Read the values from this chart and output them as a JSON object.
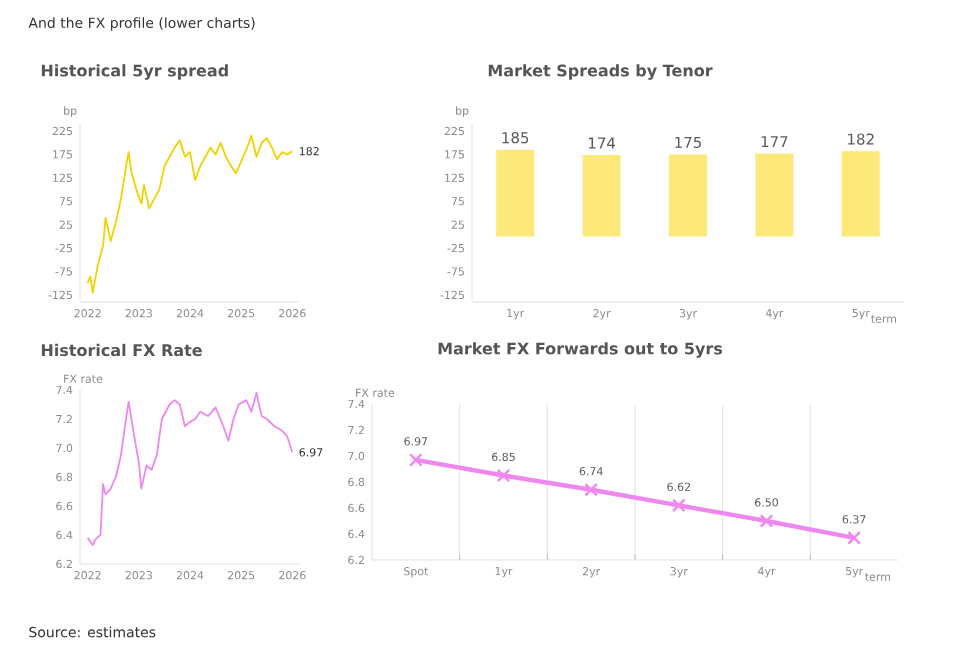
{
  "chart_data": [
    {
      "type": "line",
      "title": "Historical 5yr spread",
      "ylabel": "bp",
      "color": "#f2d200",
      "annotations": [
        "And the FX profile (lower charts)",
        {
          "text": "182",
          "x": 2026.0,
          "y": 182
        }
      ],
      "x": [
        2022.0,
        2022.05,
        2022.1,
        2022.15,
        2022.2,
        2022.3,
        2022.35,
        2022.45,
        2022.55,
        2022.65,
        2022.75,
        2022.8,
        2022.85,
        2022.95,
        2023.05,
        2023.1,
        2023.2,
        2023.3,
        2023.4,
        2023.5,
        2023.6,
        2023.7,
        2023.8,
        2023.9,
        2024.0,
        2024.1,
        2024.2,
        2024.3,
        2024.4,
        2024.5,
        2024.6,
        2024.7,
        2024.8,
        2024.9,
        2025.0,
        2025.1,
        2025.2,
        2025.3,
        2025.4,
        2025.5,
        2025.6,
        2025.7,
        2025.8,
        2025.9,
        2026.0
      ],
      "values": [
        -100,
        -85,
        -120,
        -90,
        -60,
        -20,
        40,
        -10,
        30,
        80,
        150,
        180,
        140,
        100,
        70,
        110,
        60,
        80,
        100,
        150,
        170,
        190,
        205,
        170,
        180,
        120,
        150,
        170,
        190,
        175,
        200,
        170,
        150,
        135,
        160,
        185,
        215,
        170,
        200,
        210,
        190,
        165,
        180,
        175,
        182
      ],
      "xlim": [
        2021.85,
        2026.15
      ],
      "xticks": [
        2022,
        2023,
        2024,
        2025,
        2026
      ],
      "ylim": [
        -140,
        240
      ],
      "yticks": [
        -125,
        -75,
        -25,
        25,
        75,
        125,
        175,
        225
      ]
    },
    {
      "type": "bar",
      "title": "Market Spreads by Tenor",
      "ylabel": "bp",
      "xlabel": "term",
      "color": "#fde97a",
      "categories": [
        "1yr",
        "2yr",
        "3yr",
        "4yr",
        "5yr"
      ],
      "values": [
        185,
        174,
        175,
        177,
        182
      ],
      "data_labels": true,
      "ylim": [
        -140,
        240
      ],
      "yticks": [
        -125,
        -75,
        -25,
        25,
        75,
        125,
        175,
        225
      ]
    },
    {
      "type": "line",
      "title": "Historical FX Rate",
      "ylabel": "FX rate",
      "color": "#ee88ee",
      "annotations": [
        "Source: estimates",
        {
          "text": "6.97",
          "x": 2026.0,
          "y": 6.97
        }
      ],
      "x": [
        2022.0,
        2022.1,
        2022.15,
        2022.25,
        2022.3,
        2022.35,
        2022.45,
        2022.55,
        2022.65,
        2022.75,
        2022.8,
        2022.9,
        2023.0,
        2023.05,
        2023.15,
        2023.25,
        2023.35,
        2023.45,
        2023.6,
        2023.7,
        2023.8,
        2023.9,
        2024.0,
        2024.1,
        2024.2,
        2024.35,
        2024.5,
        2024.65,
        2024.75,
        2024.85,
        2024.95,
        2025.1,
        2025.2,
        2025.3,
        2025.4,
        2025.5,
        2025.65,
        2025.8,
        2025.9,
        2026.0
      ],
      "values": [
        6.38,
        6.33,
        6.37,
        6.4,
        6.75,
        6.68,
        6.72,
        6.8,
        6.95,
        7.2,
        7.32,
        7.1,
        6.9,
        6.72,
        6.88,
        6.85,
        6.95,
        7.2,
        7.3,
        7.33,
        7.3,
        7.15,
        7.18,
        7.2,
        7.25,
        7.22,
        7.28,
        7.15,
        7.05,
        7.2,
        7.3,
        7.33,
        7.25,
        7.38,
        7.22,
        7.2,
        7.15,
        7.12,
        7.08,
        6.97
      ],
      "xlim": [
        2021.85,
        2026.15
      ],
      "xticks": [
        2022,
        2023,
        2024,
        2025,
        2026
      ],
      "ylim": [
        6.2,
        7.4
      ],
      "yticks": [
        6.2,
        6.4,
        6.6,
        6.8,
        {
          "value": 7.0,
          "label": "7.0"
        },
        7.2,
        7.4
      ]
    },
    {
      "type": "line",
      "title": "Market FX Forwards out to 5yrs",
      "ylabel": "FX rate",
      "xlabel": "term",
      "color": "#ee88ee",
      "marker": "cross",
      "grid": "x",
      "categories": [
        "Spot",
        "1yr",
        "2yr",
        "3yr",
        "4yr",
        "5yr"
      ],
      "values": [
        6.97,
        6.85,
        6.74,
        6.62,
        6.5,
        6.37
      ],
      "value_labels": [
        "6.97",
        "6.85",
        "6.74",
        "6.62",
        "6.50",
        "6.37"
      ],
      "ylim": [
        6.2,
        7.4
      ],
      "yticks": [
        6.2,
        6.4,
        6.6,
        6.8,
        {
          "value": 7.0,
          "label": "7.0"
        },
        7.2,
        7.4
      ]
    }
  ]
}
